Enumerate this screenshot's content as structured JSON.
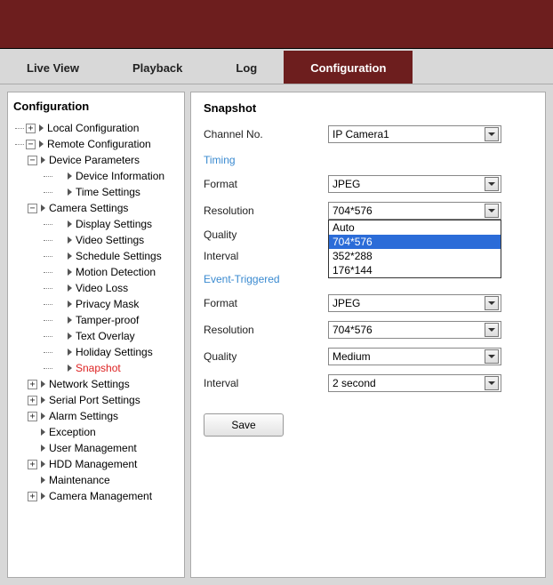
{
  "tabs": {
    "live_view": "Live View",
    "playback": "Playback",
    "log": "Log",
    "configuration": "Configuration"
  },
  "sidebar": {
    "title": "Configuration",
    "local_configuration": "Local Configuration",
    "remote_configuration": "Remote Configuration",
    "device_parameters": "Device Parameters",
    "device_information": "Device Information",
    "time_settings": "Time Settings",
    "camera_settings": "Camera Settings",
    "display_settings": "Display Settings",
    "video_settings": "Video Settings",
    "schedule_settings": "Schedule Settings",
    "motion_detection": "Motion Detection",
    "video_loss": "Video Loss",
    "privacy_mask": "Privacy Mask",
    "tamper_proof": "Tamper-proof",
    "text_overlay": "Text Overlay",
    "holiday_settings": "Holiday Settings",
    "snapshot": "Snapshot",
    "network_settings": "Network Settings",
    "serial_port_settings": "Serial Port Settings",
    "alarm_settings": "Alarm Settings",
    "exception": "Exception",
    "user_management": "User Management",
    "hdd_management": "HDD Management",
    "maintenance": "Maintenance",
    "camera_management": "Camera Management"
  },
  "panel": {
    "title": "Snapshot",
    "channel_label": "Channel No.",
    "channel_value": "IP Camera1",
    "timing_section": "Timing",
    "event_section": "Event-Triggered",
    "format_label": "Format",
    "resolution_label": "Resolution",
    "quality_label": "Quality",
    "interval_label": "Interval",
    "timing": {
      "format_value": "JPEG",
      "resolution_value": "704*576",
      "resolution_options": [
        "Auto",
        "704*576",
        "352*288",
        "176*144"
      ],
      "quality_value": "",
      "interval_value": ""
    },
    "event": {
      "format_value": "JPEG",
      "resolution_value": "704*576",
      "quality_value": "Medium",
      "interval_value": "2 second"
    },
    "save_label": "Save"
  },
  "colors": {
    "brand": "#6d1e1e",
    "highlight": "#2b6cd8",
    "selected_text": "#d22",
    "section_blue": "#3a8ad0"
  }
}
